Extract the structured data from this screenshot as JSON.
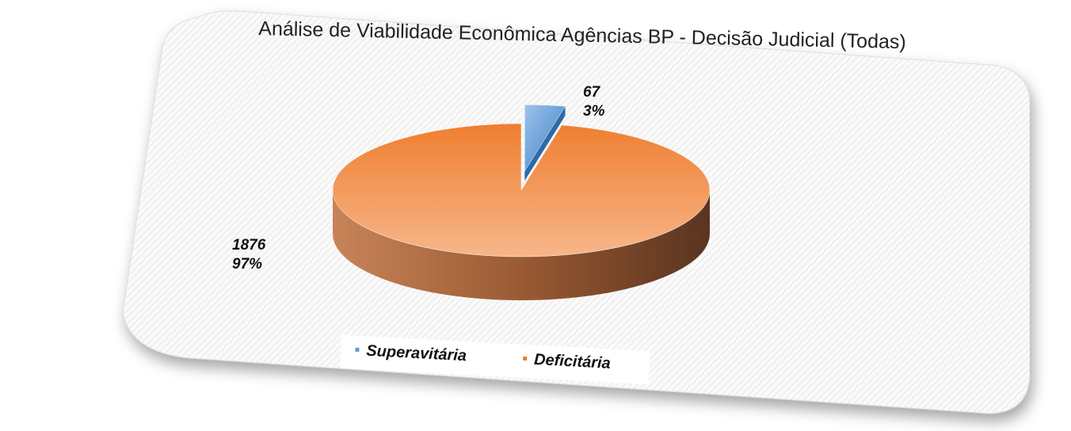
{
  "chart_data": {
    "type": "pie",
    "title": "Análise de Viabilidade Econômica  Agências BP - Decisão Judicial (Todas)",
    "categories": [
      "Superavitária",
      "Deficitária"
    ],
    "values": [
      67,
      1876
    ],
    "percents": [
      3,
      97
    ],
    "percent_labels": [
      "3%",
      "97%"
    ],
    "colors": [
      "#5b9bd5",
      "#ed7d31"
    ],
    "legend": "bottom"
  }
}
